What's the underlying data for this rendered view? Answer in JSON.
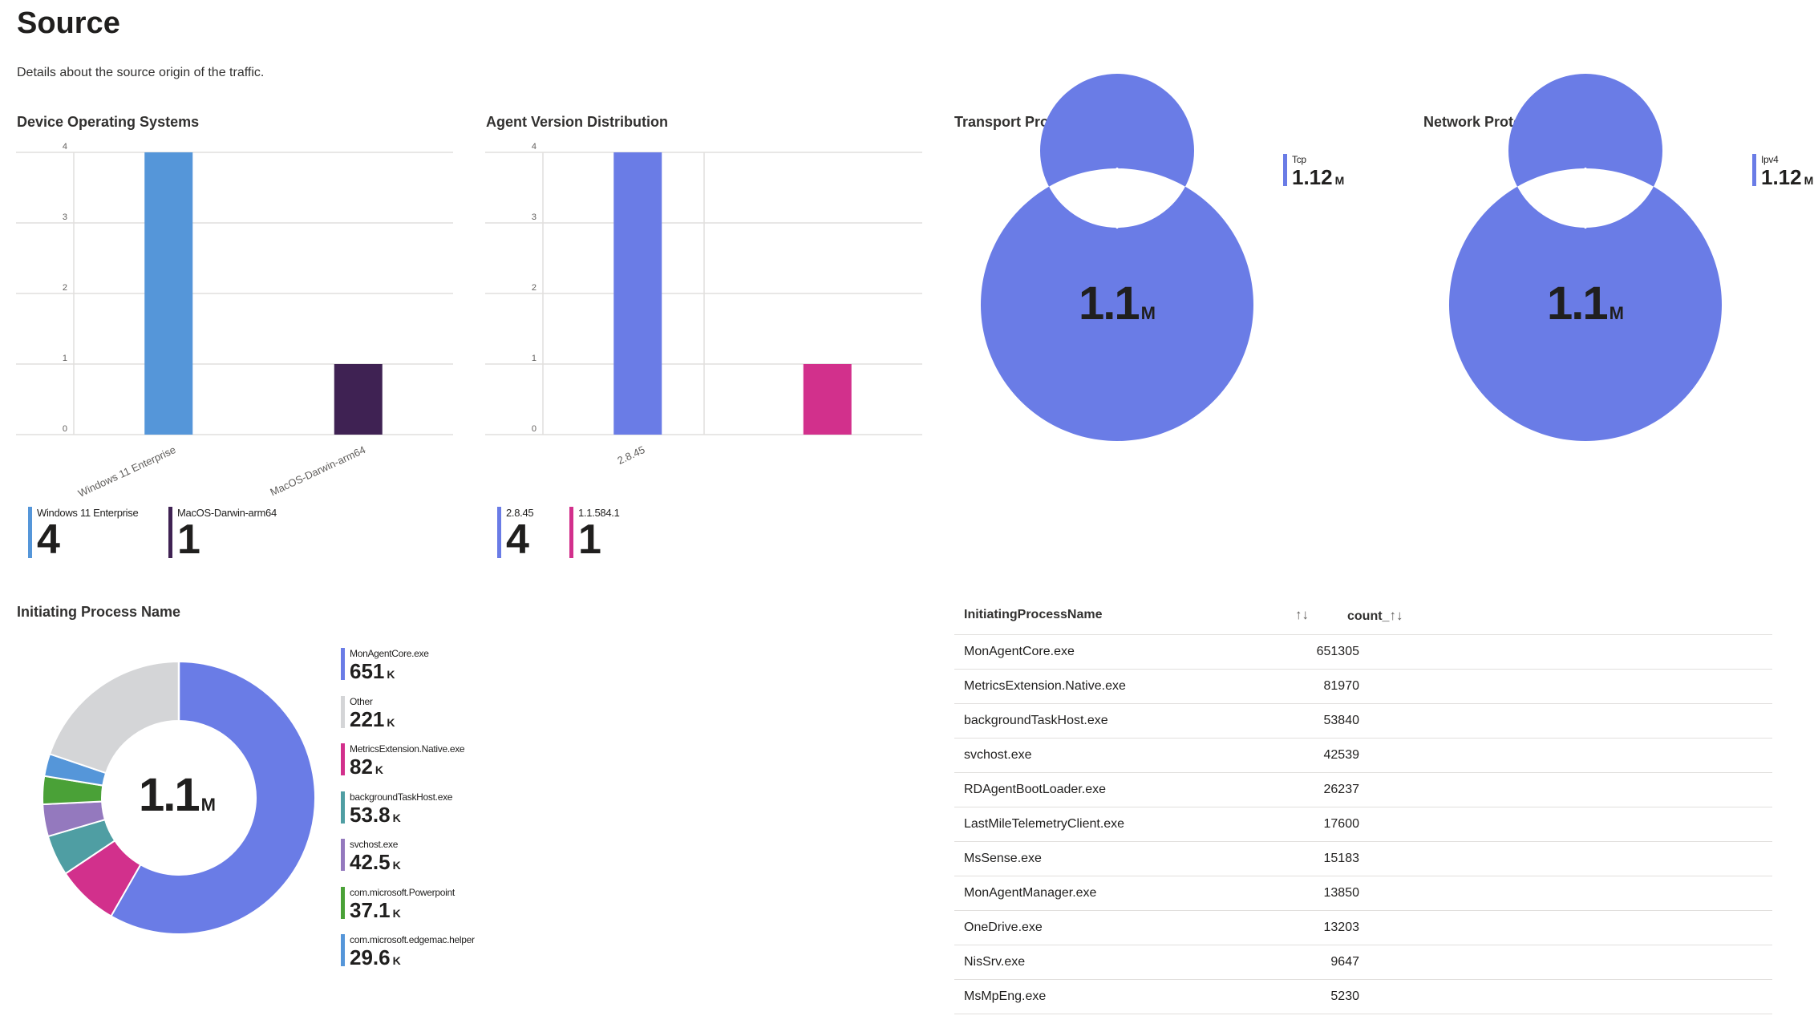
{
  "page": {
    "title": "Source",
    "subtitle": "Details about the source origin of the traffic."
  },
  "device_os": {
    "title": "Device Operating Systems",
    "legend": [
      {
        "label": "Windows 11 Enterprise",
        "value": "4",
        "color": "#5596d9"
      },
      {
        "label": "MacOS-Darwin-arm64",
        "value": "1",
        "color": "#3f2253"
      }
    ]
  },
  "agent_version": {
    "title": "Agent Version Distribution",
    "legend": [
      {
        "label": "2.8.45",
        "value": "4",
        "color": "#6a7ce6"
      },
      {
        "label": "1.1.584.1",
        "value": "1",
        "color": "#d2308c"
      }
    ]
  },
  "transport": {
    "title": "Transport Protocols in use",
    "center_value": "1.1",
    "center_unit": "M",
    "legend": [
      {
        "label": "Tcp",
        "value": "1.12",
        "unit": "M",
        "color": "#6a7ce6"
      }
    ]
  },
  "network": {
    "title": "Network Protocols in use",
    "center_value": "1.1",
    "center_unit": "M",
    "legend": [
      {
        "label": "Ipv4",
        "value": "1.12",
        "unit": "M",
        "color": "#6a7ce6"
      }
    ]
  },
  "process": {
    "title": "Initiating Process Name",
    "center_value": "1.1",
    "center_unit": "M",
    "legend": [
      {
        "label": "MonAgentCore.exe",
        "value": "651",
        "unit": "K",
        "color": "#6a7ce6"
      },
      {
        "label": "Other",
        "value": "221",
        "unit": "K",
        "color": "#d4d5d7"
      },
      {
        "label": "MetricsExtension.Native.exe",
        "value": "82",
        "unit": "K",
        "color": "#d2308c"
      },
      {
        "label": "backgroundTaskHost.exe",
        "value": "53.8",
        "unit": "K",
        "color": "#4f9ea3"
      },
      {
        "label": "svchost.exe",
        "value": "42.5",
        "unit": "K",
        "color": "#9479be"
      },
      {
        "label": "com.microsoft.Powerpoint",
        "value": "37.1",
        "unit": "K",
        "color": "#4aa137"
      },
      {
        "label": "com.microsoft.edgemac.helper",
        "value": "29.6",
        "unit": "K",
        "color": "#5596d9"
      }
    ]
  },
  "table": {
    "col_name": "InitiatingProcessName",
    "col_count": "count_",
    "sort_icon": "↑↓",
    "rows": [
      {
        "name": "MonAgentCore.exe",
        "count": "651305"
      },
      {
        "name": "MetricsExtension.Native.exe",
        "count": "81970"
      },
      {
        "name": "backgroundTaskHost.exe",
        "count": "53840"
      },
      {
        "name": "svchost.exe",
        "count": "42539"
      },
      {
        "name": "RDAgentBootLoader.exe",
        "count": "26237"
      },
      {
        "name": "LastMileTelemetryClient.exe",
        "count": "17600"
      },
      {
        "name": "MsSense.exe",
        "count": "15183"
      },
      {
        "name": "MonAgentManager.exe",
        "count": "13850"
      },
      {
        "name": "OneDrive.exe",
        "count": "13203"
      },
      {
        "name": "NisSrv.exe",
        "count": "9647"
      },
      {
        "name": "MsMpEng.exe",
        "count": "5230"
      }
    ]
  },
  "chart_data": [
    {
      "type": "bar",
      "title": "Device Operating Systems",
      "categories": [
        "Windows 11 Enterprise",
        "MacOS-Darwin-arm64"
      ],
      "values": [
        4,
        1
      ],
      "colors": [
        "#5596d9",
        "#3f2253"
      ],
      "ylim": [
        0,
        4
      ],
      "yticks": [
        0,
        1,
        2,
        3,
        4
      ]
    },
    {
      "type": "bar",
      "title": "Agent Version Distribution",
      "categories": [
        "2.8.45",
        "1.1.584.1"
      ],
      "xtick_labels": [
        "2.8.45"
      ],
      "values": [
        4,
        1
      ],
      "colors": [
        "#6a7ce6",
        "#d2308c"
      ],
      "ylim": [
        0,
        4
      ],
      "yticks": [
        0,
        1,
        2,
        3,
        4
      ]
    },
    {
      "type": "pie",
      "title": "Transport Protocols in use",
      "labels": [
        "Tcp"
      ],
      "values": [
        1120000
      ]
    },
    {
      "type": "pie",
      "title": "Network Protocols in use",
      "labels": [
        "Ipv4"
      ],
      "values": [
        1120000
      ]
    },
    {
      "type": "pie",
      "title": "Initiating Process Name",
      "labels": [
        "MonAgentCore.exe",
        "MetricsExtension.Native.exe",
        "backgroundTaskHost.exe",
        "svchost.exe",
        "com.microsoft.Powerpoint",
        "com.microsoft.edgemac.helper",
        "Other"
      ],
      "values": [
        651000,
        82000,
        53800,
        42500,
        37100,
        29600,
        221000
      ],
      "colors": [
        "#6a7ce6",
        "#d2308c",
        "#4f9ea3",
        "#9479be",
        "#4aa137",
        "#5596d9",
        "#d4d5d7"
      ]
    }
  ]
}
